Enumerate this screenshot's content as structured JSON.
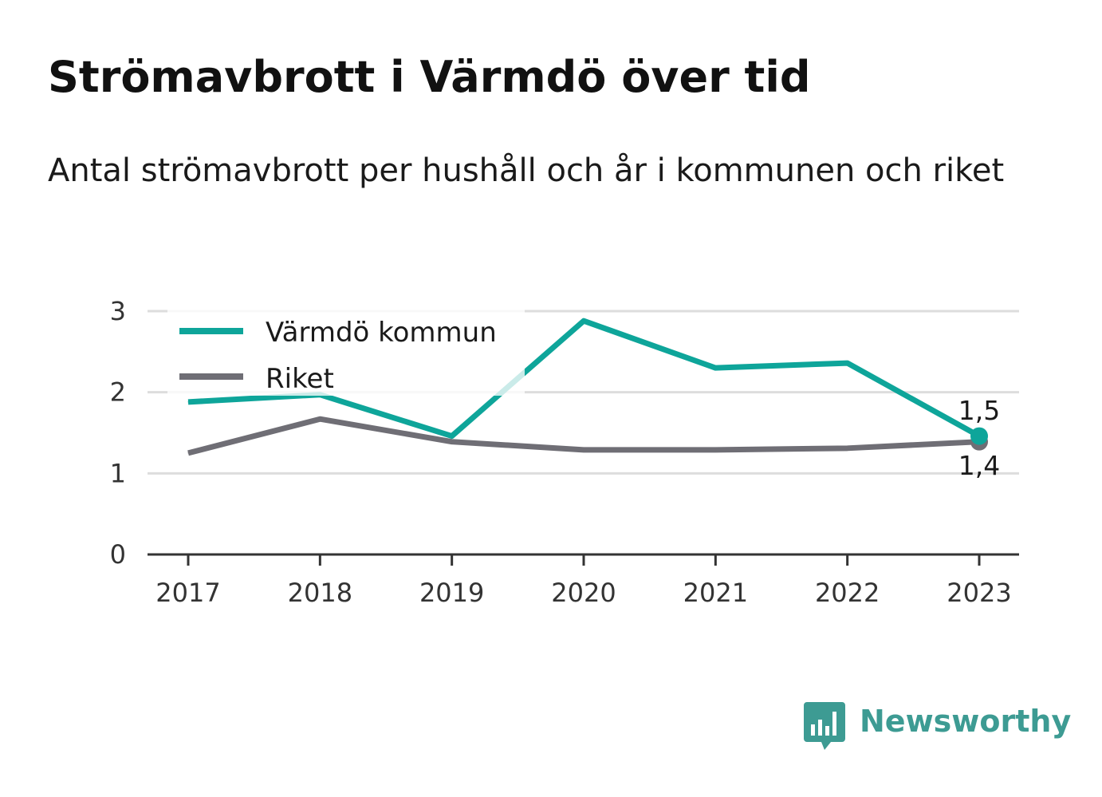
{
  "title": "Strömavbrott i Värmdö över tid",
  "subtitle": "Antal strömavbrott per hushåll och år i kommunen och riket",
  "brand": {
    "name": "Newsworthy",
    "icon": "newsworthy-logo-icon"
  },
  "colors": {
    "kommun": "#0ea59a",
    "riket": "#6f6e75",
    "grid": "#dddddd",
    "axis": "#333333",
    "brand": "#3d9b93"
  },
  "chart_data": {
    "type": "line",
    "categories": [
      "2017",
      "2018",
      "2019",
      "2020",
      "2021",
      "2022",
      "2023"
    ],
    "ylim": [
      0,
      3
    ],
    "yticks": [
      "0",
      "1",
      "2",
      "3"
    ],
    "grid": true,
    "legend_position": "top-left",
    "series": [
      {
        "name": "Värmdö kommun",
        "values": [
          1.88,
          1.97,
          1.46,
          2.88,
          2.3,
          2.36,
          1.46
        ],
        "end_label": "1,5"
      },
      {
        "name": "Riket",
        "values": [
          1.25,
          1.67,
          1.39,
          1.29,
          1.29,
          1.31,
          1.39
        ],
        "end_label": "1,4"
      }
    ]
  }
}
